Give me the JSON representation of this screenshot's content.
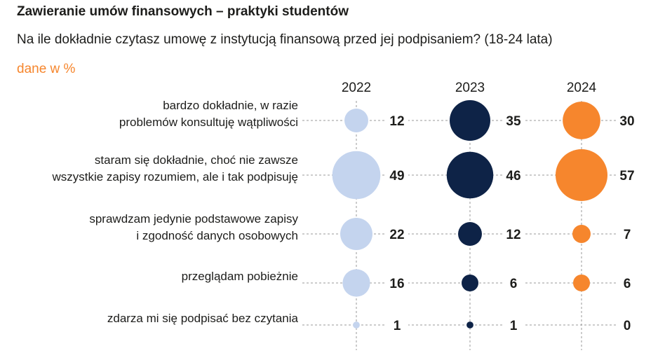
{
  "title": "Zawieranie umów finansowych – praktyki studentów",
  "subtitle": "Na ile dokładnie czytasz umowę z instytucją finansową przed jej podpisaniem? (18-24 lata)",
  "unit_note": "dane w %",
  "colors": {
    "2022": "#c4d4ee",
    "2023": "#0e2347",
    "2024": "#f6862d",
    "grid": "#9a9a9a"
  },
  "chart_data": {
    "type": "bubble",
    "title": "Zawieranie umów finansowych – praktyki studentów",
    "subtitle": "Na ile dokładnie czytasz umowę z instytucją finansową przed jej podpisaniem? (18-24 lata)",
    "unit": "dane w %",
    "columns": [
      "2022",
      "2023",
      "2024"
    ],
    "categories": [
      [
        "bardzo dokładnie, w razie",
        "problemów konsultuję wątpliwości"
      ],
      [
        "staram się dokładnie, choć nie zawsze",
        "wszystkie zapisy rozumiem, ale i tak podpisuję"
      ],
      [
        "sprawdzam jedynie podstawowe zapisy",
        "i zgodność danych osobowych"
      ],
      [
        "przeglądam pobieżnie"
      ],
      [
        "zdarza mi się podpisać bez czytania"
      ]
    ],
    "series": [
      {
        "name": "2022",
        "values": [
          12,
          49,
          22,
          16,
          1
        ]
      },
      {
        "name": "2023",
        "values": [
          35,
          46,
          12,
          6,
          1
        ]
      },
      {
        "name": "2024",
        "values": [
          30,
          57,
          7,
          6,
          0
        ]
      }
    ]
  }
}
